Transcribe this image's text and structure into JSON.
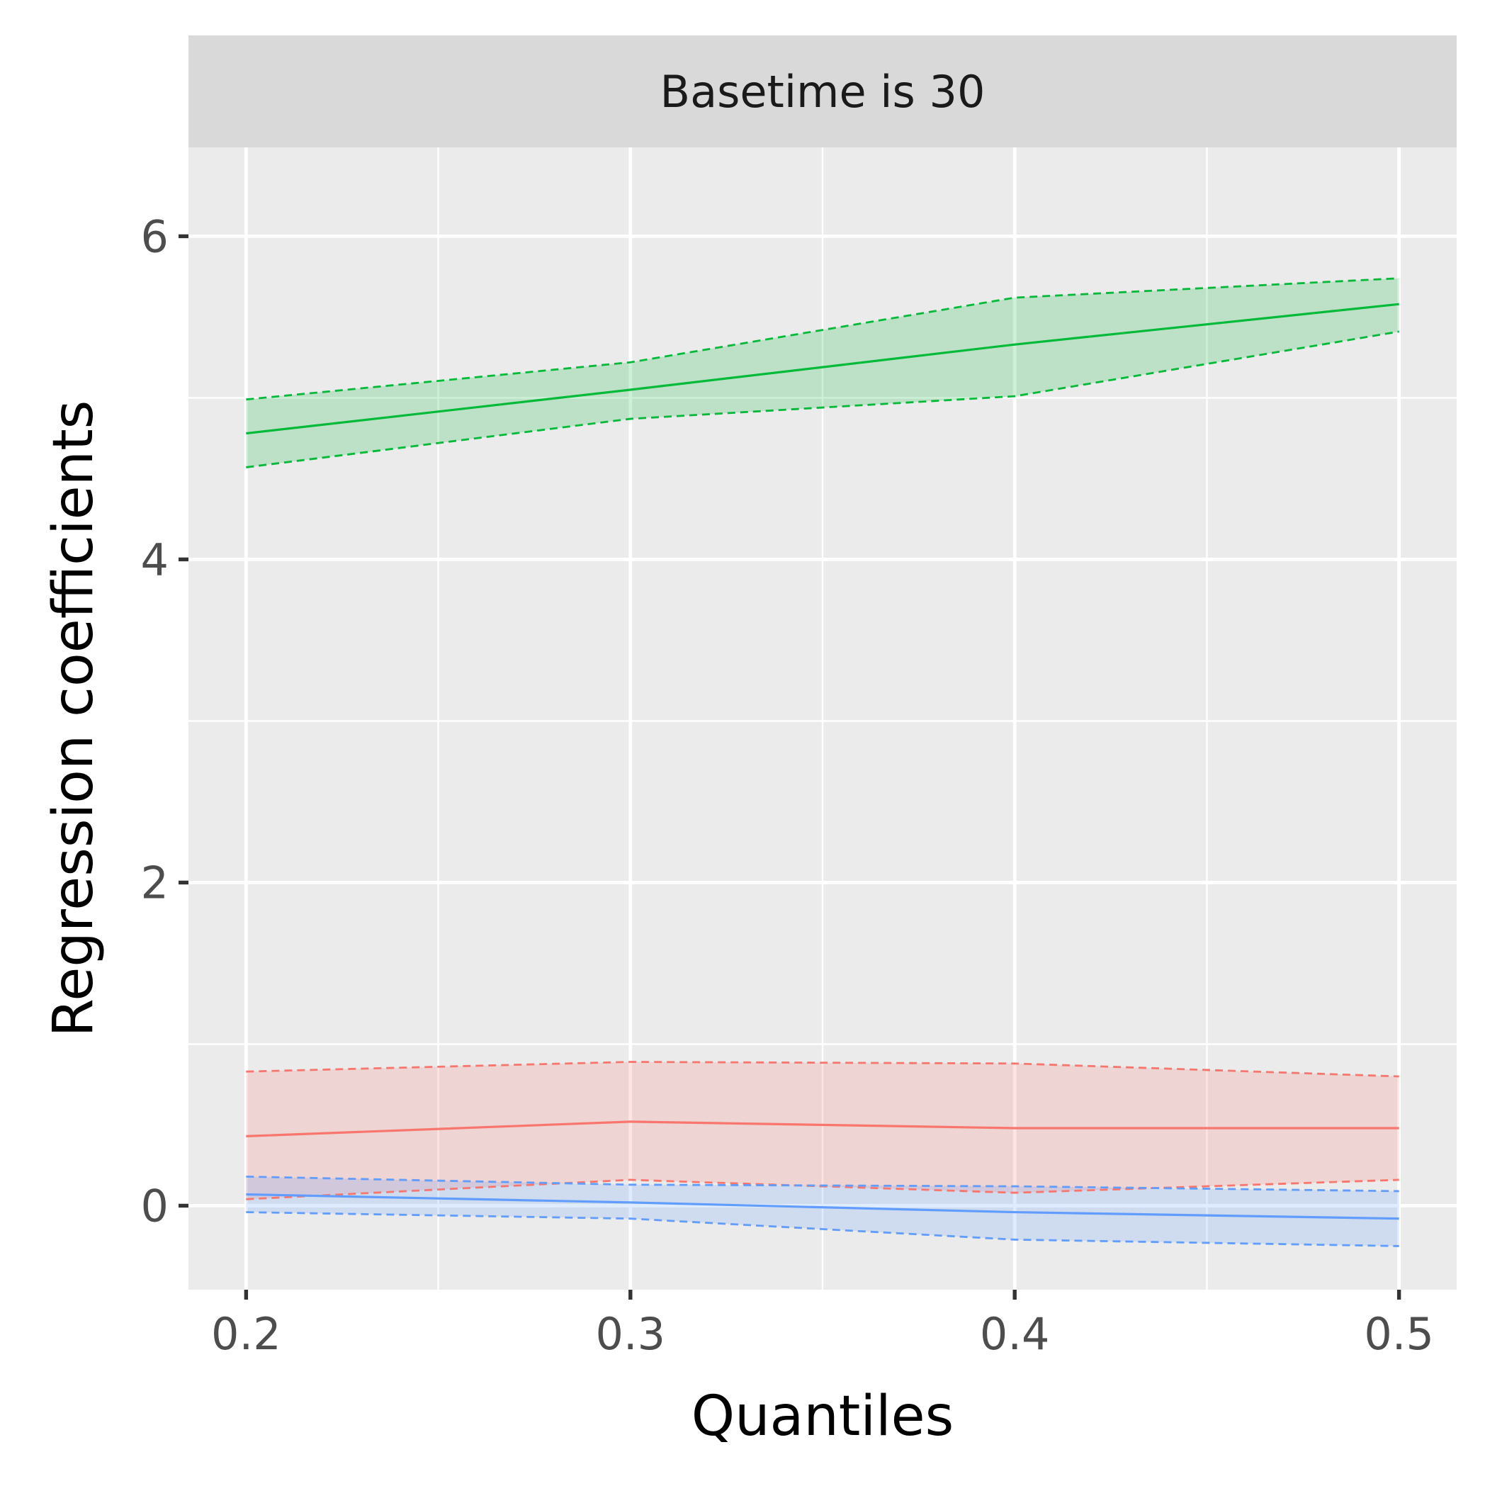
{
  "chart_data": {
    "type": "line",
    "facet_label": "Basetime is 30",
    "xlabel": "Quantiles",
    "ylabel": "Regression coefficients",
    "x": [
      0.2,
      0.3,
      0.4,
      0.5
    ],
    "x_ticks": [
      "0.2",
      "0.3",
      "0.4",
      "0.5"
    ],
    "y_ticks": [
      "0",
      "2",
      "4",
      "6"
    ],
    "xlim": [
      0.185,
      0.515
    ],
    "ylim": [
      -0.52,
      6.55
    ],
    "grid": true,
    "legend": "none",
    "series": [
      {
        "color": "#F8766D",
        "fill": "#F8766D",
        "estimate": [
          0.43,
          0.52,
          0.48,
          0.48
        ],
        "lower": [
          0.04,
          0.16,
          0.08,
          0.16
        ],
        "upper": [
          0.83,
          0.89,
          0.88,
          0.8
        ]
      },
      {
        "color": "#00BA38",
        "fill": "#00BA38",
        "estimate": [
          4.78,
          5.05,
          5.33,
          5.58
        ],
        "lower": [
          4.57,
          4.87,
          5.01,
          5.41
        ],
        "upper": [
          4.99,
          5.22,
          5.62,
          5.74
        ]
      },
      {
        "color": "#619CFF",
        "fill": "#619CFF",
        "estimate": [
          0.07,
          0.02,
          -0.04,
          -0.08
        ],
        "lower": [
          -0.04,
          -0.08,
          -0.21,
          -0.25
        ],
        "upper": [
          0.18,
          0.13,
          0.12,
          0.09
        ]
      }
    ]
  }
}
